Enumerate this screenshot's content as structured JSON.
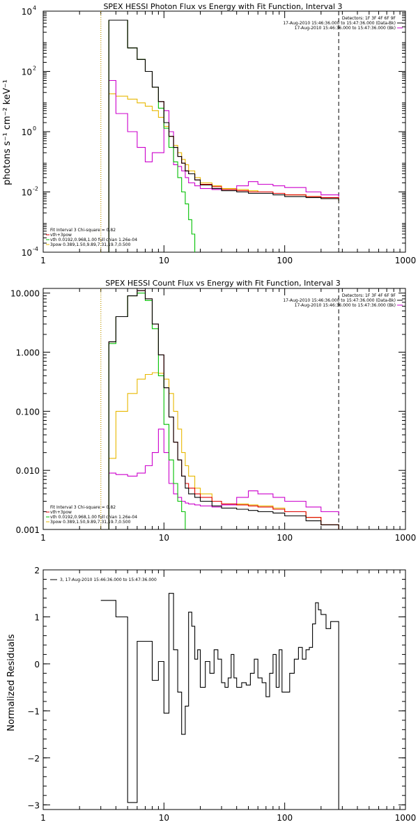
{
  "chart_data": [
    {
      "type": "line",
      "title": "SPEX HESSI Photon Flux vs Energy with Fit Function, Interval 3",
      "xlabel": "",
      "ylabel": "photons s⁻¹ cm⁻² keV⁻¹",
      "xscale": "log",
      "yscale": "log",
      "xlim": [
        1,
        1000
      ],
      "ylim": [
        0.0001,
        10000
      ],
      "x_ticks": [
        "1",
        "10",
        "100",
        "1000"
      ],
      "y_ticks": [
        {
          "base": "10",
          "exp": "4",
          "value": 10000
        },
        {
          "base": "10",
          "exp": "2",
          "value": 100
        },
        {
          "base": "10",
          "exp": "0",
          "value": 1
        },
        {
          "base": "10",
          "exp": "-2",
          "value": 0.01
        },
        {
          "base": "10",
          "exp": "-4",
          "value": 0.0001
        }
      ],
      "legend_right": [
        "Detectors: 1F 3F 4F 6F 9F",
        "17-Aug-2010 15:46:36.000 to 15:47:36.000 (Data-Bk)",
        "17-Aug-2010 15:46:36.000 to 15:47:36.000 (Bk)"
      ],
      "legend_right_colors": [
        "#000000",
        "#000000",
        "#cc00cc"
      ],
      "legend_left": [
        "Fit Interval 3   Chi-square = 0.82",
        "vth+3pow",
        "vth 0.0192,0.968,1.00  full chian 1.26e-04",
        "3pow 0.389,1.50,9.89,7.31,19.7,0.500"
      ],
      "legend_left_colors": [
        "#000000",
        "#e00000",
        "#00c000",
        "#e8b800"
      ],
      "vlines": [
        {
          "x": 3,
          "style": "dotted",
          "color": "#000000"
        },
        {
          "x": 3,
          "style": "dotted",
          "color": "#e8b800"
        },
        {
          "x": 280,
          "style": "dashed",
          "color": "#000000"
        }
      ],
      "series": [
        {
          "name": "",
          "color": "#e8b800",
          "x": [
            3,
            3.5,
            4,
            5,
            6,
            7,
            8,
            9,
            10,
            11,
            12,
            13,
            14,
            15,
            16,
            18,
            20,
            25,
            30,
            40,
            50,
            60,
            80,
            100,
            150,
            200,
            280
          ],
          "values": [
            0.0001,
            18,
            15,
            12,
            9,
            7,
            5,
            3,
            1.5,
            0.7,
            0.35,
            0.2,
            0.12,
            0.08,
            0.05,
            0.03,
            0.02,
            0.016,
            0.013,
            0.012,
            0.011,
            0.01,
            0.009,
            0.008,
            0.007,
            0.006,
            0.005
          ]
        },
        {
          "name": "",
          "color": "#cc00cc",
          "x": [
            3,
            3.5,
            4,
            5,
            6,
            7,
            8,
            9,
            10,
            11,
            12,
            13,
            14,
            15,
            16,
            18,
            20,
            25,
            30,
            40,
            50,
            60,
            80,
            100,
            150,
            200,
            280
          ],
          "values": [
            0.0001,
            50,
            4,
            1,
            0.3,
            0.1,
            0.2,
            0.2,
            5,
            1,
            0.08,
            0.07,
            0.05,
            0.03,
            0.02,
            0.016,
            0.013,
            0.012,
            0.012,
            0.016,
            0.022,
            0.018,
            0.016,
            0.014,
            0.01,
            0.008,
            0.007
          ]
        },
        {
          "name": "",
          "color": "#e00000",
          "x": [
            3,
            3.5,
            4,
            5,
            6,
            7,
            8,
            9,
            10,
            11,
            12,
            13,
            14,
            15,
            16,
            18,
            20,
            25,
            30,
            40,
            50,
            60,
            80,
            100,
            150,
            200,
            280
          ],
          "values": [
            0.0001,
            5000,
            5000,
            600,
            250,
            100,
            30,
            10,
            2,
            0.7,
            0.3,
            0.15,
            0.09,
            0.05,
            0.04,
            0.025,
            0.018,
            0.015,
            0.012,
            0.011,
            0.01,
            0.01,
            0.009,
            0.008,
            0.007,
            0.0065,
            0.006
          ]
        },
        {
          "name": "",
          "color": "#00c000",
          "x": [
            3,
            3.5,
            4,
            5,
            6,
            7,
            8,
            9,
            10,
            11,
            12,
            13,
            14,
            15,
            16,
            17,
            18
          ],
          "values": [
            0.0001,
            5000,
            5000,
            600,
            250,
            100,
            30,
            6,
            1.3,
            0.3,
            0.1,
            0.03,
            0.01,
            0.004,
            0.0012,
            0.0004,
            0.0001
          ]
        },
        {
          "name": "",
          "color": "#000000",
          "x": [
            3,
            3.5,
            4,
            5,
            6,
            7,
            8,
            9,
            10,
            11,
            12,
            13,
            14,
            15,
            16,
            18,
            20,
            25,
            30,
            40,
            50,
            60,
            80,
            100,
            150,
            200,
            280
          ],
          "values": [
            0.0001,
            5000,
            5000,
            600,
            250,
            100,
            30,
            10,
            2,
            0.7,
            0.3,
            0.15,
            0.09,
            0.05,
            0.04,
            0.025,
            0.017,
            0.013,
            0.011,
            0.01,
            0.009,
            0.009,
            0.008,
            0.007,
            0.0065,
            0.006,
            0.005
          ]
        }
      ]
    },
    {
      "type": "line",
      "title": "SPEX HESSI Count Flux vs Energy with Fit Function, Interval 3",
      "xlabel": "",
      "ylabel": "",
      "xscale": "log",
      "yscale": "log",
      "xlim": [
        1,
        1000
      ],
      "ylim": [
        0.001,
        12
      ],
      "x_ticks": [
        "1",
        "10",
        "100",
        "1000"
      ],
      "y_ticks": [
        {
          "label": "10.000",
          "value": 10
        },
        {
          "label": "1.000",
          "value": 1
        },
        {
          "label": "0.100",
          "value": 0.1
        },
        {
          "label": "0.010",
          "value": 0.01
        },
        {
          "label": "0.001",
          "value": 0.001
        }
      ],
      "legend_right": [
        "Detectors: 1F 3F 4F 6F 9F",
        "17-Aug-2010 15:46:36.000 to 15:47:36.000 (Data-Bk)",
        "17-Aug-2010 15:46:36.000 to 15:47:36.000 (Bk)"
      ],
      "legend_right_colors": [
        "#000000",
        "#000000",
        "#cc00cc"
      ],
      "legend_left": [
        "Fit Interval 3   Chi-square = 0.82",
        "vth+3pow",
        "vth 0.0192,0.968,1.00  full chian 1.26e-04",
        "3pow 0.389,1.50,9.89,7.31,19.7,0.500"
      ],
      "legend_left_colors": [
        "#000000",
        "#e00000",
        "#00c000",
        "#e8b800"
      ],
      "vlines": [
        {
          "x": 3,
          "style": "dotted",
          "color": "#000000"
        },
        {
          "x": 3,
          "style": "dotted",
          "color": "#e8b800"
        },
        {
          "x": 280,
          "style": "dashed",
          "color": "#000000"
        }
      ],
      "series": [
        {
          "name": "",
          "color": "#e8b800",
          "x": [
            3,
            3.5,
            4,
            5,
            6,
            7,
            8,
            9,
            10,
            11,
            12,
            13,
            14,
            15,
            16,
            18,
            20,
            25,
            30,
            40,
            50,
            60,
            80,
            100,
            150,
            200,
            280
          ],
          "values": [
            0.001,
            0.016,
            0.1,
            0.2,
            0.35,
            0.42,
            0.45,
            0.44,
            0.35,
            0.2,
            0.1,
            0.05,
            0.02,
            0.012,
            0.008,
            0.005,
            0.004,
            0.003,
            0.0027,
            0.0027,
            0.0026,
            0.0025,
            0.0023,
            0.002,
            0.0016,
            0.0012,
            0.001
          ]
        },
        {
          "name": "",
          "color": "#cc00cc",
          "x": [
            3,
            3.5,
            4,
            5,
            6,
            7,
            8,
            9,
            10,
            11,
            12,
            13,
            14,
            15,
            16,
            18,
            20,
            25,
            30,
            40,
            50,
            60,
            80,
            100,
            150,
            200,
            280
          ],
          "values": [
            0.001,
            0.009,
            0.0085,
            0.008,
            0.009,
            0.012,
            0.02,
            0.05,
            0.02,
            0.006,
            0.004,
            0.0035,
            0.003,
            0.0028,
            0.0027,
            0.0026,
            0.0025,
            0.0024,
            0.0026,
            0.0035,
            0.0045,
            0.004,
            0.0035,
            0.003,
            0.0024,
            0.002,
            0.0018
          ]
        },
        {
          "name": "",
          "color": "#e00000",
          "x": [
            3,
            3.5,
            4,
            5,
            6,
            7,
            8,
            9,
            10,
            11,
            12,
            13,
            14,
            15,
            16,
            18,
            20,
            25,
            30,
            40,
            50,
            60,
            80,
            100,
            150,
            200,
            280
          ],
          "values": [
            0.001,
            1.5,
            4,
            9,
            11,
            8,
            3,
            0.9,
            0.25,
            0.08,
            0.03,
            0.015,
            0.008,
            0.006,
            0.005,
            0.004,
            0.0035,
            0.003,
            0.0027,
            0.0026,
            0.0025,
            0.0024,
            0.0022,
            0.002,
            0.0016,
            0.0012,
            0.001
          ]
        },
        {
          "name": "",
          "color": "#00c000",
          "x": [
            3,
            3.5,
            4,
            5,
            6,
            7,
            8,
            9,
            10,
            11,
            12,
            13,
            14,
            15
          ],
          "values": [
            0.001,
            1.4,
            4,
            9,
            10,
            7.5,
            2.5,
            0.4,
            0.06,
            0.015,
            0.006,
            0.003,
            0.002,
            0.001
          ]
        },
        {
          "name": "",
          "color": "#000000",
          "x": [
            3,
            3.5,
            4,
            5,
            6,
            7,
            8,
            9,
            10,
            11,
            12,
            13,
            14,
            15,
            16,
            18,
            20,
            25,
            30,
            40,
            50,
            60,
            80,
            100,
            150,
            200,
            280
          ],
          "values": [
            0.001,
            1.5,
            4,
            9,
            11,
            8,
            3,
            0.9,
            0.25,
            0.08,
            0.03,
            0.015,
            0.008,
            0.005,
            0.004,
            0.0035,
            0.003,
            0.0025,
            0.0023,
            0.0022,
            0.0021,
            0.002,
            0.0019,
            0.0017,
            0.0014,
            0.0012,
            0.001
          ]
        }
      ]
    },
    {
      "type": "line",
      "title": "",
      "xlabel": "",
      "ylabel": "Normalized Residuals",
      "xscale": "log",
      "yscale": "linear",
      "xlim": [
        1,
        1000
      ],
      "ylim": [
        -3.1,
        2
      ],
      "x_ticks": [
        "1",
        "10",
        "100",
        "1000"
      ],
      "y_ticks": [
        {
          "label": "2",
          "value": 2
        },
        {
          "label": "1",
          "value": 1
        },
        {
          "label": "0",
          "value": 0
        },
        {
          "label": "−1",
          "value": -1
        },
        {
          "label": "−2",
          "value": -2
        },
        {
          "label": "−3",
          "value": -3
        }
      ],
      "legend_text": "3, 17-Aug-2010 15:46:36.000 to 15:47:36.000",
      "series": [
        {
          "name": "",
          "color": "#000000",
          "step": true,
          "x": [
            3,
            4,
            5,
            6,
            7,
            8,
            9,
            10,
            11,
            12,
            13,
            14,
            15,
            16,
            17,
            18,
            19,
            20,
            22,
            24,
            26,
            28,
            30,
            32,
            34,
            36,
            38,
            40,
            44,
            48,
            52,
            56,
            60,
            65,
            70,
            75,
            80,
            85,
            90,
            95,
            100,
            110,
            120,
            130,
            140,
            150,
            160,
            170,
            180,
            190,
            200,
            220,
            240,
            280
          ],
          "values": [
            1.35,
            1.0,
            -2.95,
            0.48,
            0.48,
            -0.35,
            0.05,
            -1.05,
            1.5,
            0.3,
            -0.6,
            -1.5,
            -0.9,
            1.1,
            0.8,
            0.1,
            0.3,
            -0.5,
            0.05,
            -0.2,
            0.3,
            0.1,
            -0.4,
            -0.5,
            -0.3,
            0.2,
            -0.3,
            -0.5,
            -0.4,
            -0.45,
            -0.2,
            0.1,
            -0.3,
            -0.4,
            -0.7,
            -0.2,
            0.2,
            -0.5,
            0.3,
            -0.6,
            -0.6,
            -0.2,
            0.1,
            0.35,
            0.1,
            0.3,
            0.35,
            0.85,
            1.3,
            1.15,
            1.05,
            0.75,
            0.9,
            -3.1
          ]
        }
      ]
    }
  ]
}
